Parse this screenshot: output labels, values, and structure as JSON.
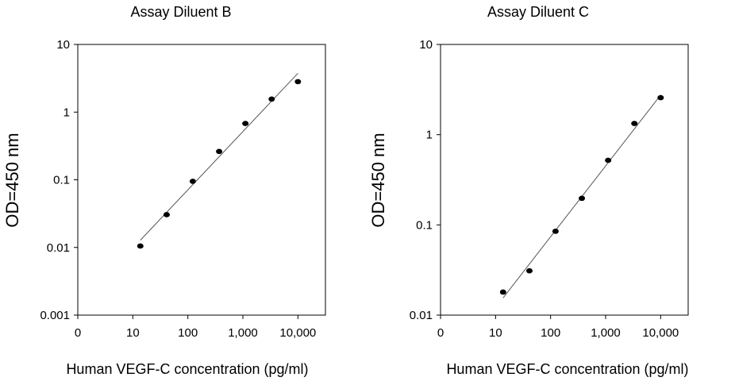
{
  "chart_data": [
    {
      "type": "scatter",
      "title": "Assay Diluent B",
      "xlabel": "Human VEGF-C concentration (pg/ml)",
      "ylabel": "OD=450 nm",
      "x_scale": "log",
      "y_scale": "log",
      "xlim": [
        1,
        31623
      ],
      "ylim": [
        0.001,
        10
      ],
      "x_ticks": [
        {
          "value": 1,
          "label": "0"
        },
        {
          "value": 10,
          "label": "10"
        },
        {
          "value": 100,
          "label": "100"
        },
        {
          "value": 1000,
          "label": "1,000"
        },
        {
          "value": 10000,
          "label": "10,000"
        }
      ],
      "y_ticks": [
        {
          "value": 0.001,
          "label": "0.001"
        },
        {
          "value": 0.01,
          "label": "0.01"
        },
        {
          "value": 0.1,
          "label": "0.1"
        },
        {
          "value": 1,
          "label": "1"
        },
        {
          "value": 10,
          "label": "10"
        }
      ],
      "grid": false,
      "points": [
        {
          "x": 13.7,
          "y": 0.0105
        },
        {
          "x": 41.2,
          "y": 0.0305
        },
        {
          "x": 123,
          "y": 0.095
        },
        {
          "x": 370,
          "y": 0.262
        },
        {
          "x": 1111,
          "y": 0.68
        },
        {
          "x": 3333,
          "y": 1.56
        },
        {
          "x": 10000,
          "y": 2.82
        }
      ],
      "fit_line": [
        {
          "x": 13.7,
          "y": 0.0128
        },
        {
          "x": 10000,
          "y": 3.75
        }
      ]
    },
    {
      "type": "scatter",
      "title": "Assay Diluent C",
      "xlabel": "Human VEGF-C concentration (pg/ml)",
      "ylabel": "OD=450 nm",
      "x_scale": "log",
      "y_scale": "log",
      "xlim": [
        1,
        31623
      ],
      "ylim": [
        0.01,
        10
      ],
      "x_ticks": [
        {
          "value": 1,
          "label": "0"
        },
        {
          "value": 10,
          "label": "10"
        },
        {
          "value": 100,
          "label": "100"
        },
        {
          "value": 1000,
          "label": "1,000"
        },
        {
          "value": 10000,
          "label": "10,000"
        }
      ],
      "y_ticks": [
        {
          "value": 0.01,
          "label": "0.01"
        },
        {
          "value": 0.1,
          "label": "0.1"
        },
        {
          "value": 1,
          "label": "1"
        },
        {
          "value": 10,
          "label": "10"
        }
      ],
      "grid": false,
      "points": [
        {
          "x": 13.7,
          "y": 0.018
        },
        {
          "x": 41.2,
          "y": 0.031
        },
        {
          "x": 123,
          "y": 0.085
        },
        {
          "x": 370,
          "y": 0.197
        },
        {
          "x": 1111,
          "y": 0.52
        },
        {
          "x": 3333,
          "y": 1.33
        },
        {
          "x": 10000,
          "y": 2.57
        }
      ],
      "fit_line": [
        {
          "x": 13.7,
          "y": 0.0155
        },
        {
          "x": 10000,
          "y": 2.75
        }
      ]
    }
  ]
}
